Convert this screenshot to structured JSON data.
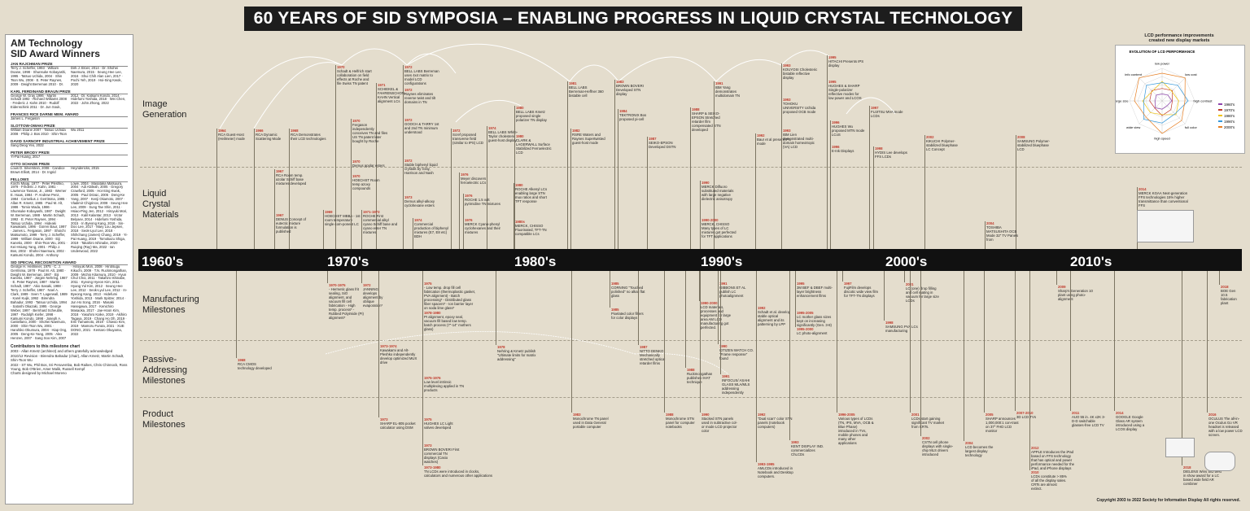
{
  "title": "60 YEARS OF SID SYMPOSIA – ENABLING PROGRESS IN LIQUID CRYSTAL TECHNOLOGY",
  "panel": {
    "title_line1": "AM Technology",
    "title_line2": "SID Award Winners",
    "prizes": [
      {
        "name": "JAN RAJCHMAN PRIZE",
        "winners": "Terry J. Scheffer, 1993 · William Doane, 1998 · Shunsuke Kobayashi, 1995 · Tatsuo Uchida, 2004 · Shin Tson Wu, 2008 · E. Peter Raynes, 2009 · Dwight Berreman 2010 · Dr. Dirk J. Broer, 2014 · Dr. Shohei Naemura, 2015 · Seung Hee Lee, 2016 · Shui Chih Alan Lien, 2017 · Pochi Yeh, 2019 · Hoi-Sing Kwok, 2020"
      },
      {
        "name": "KARL FERDINAND BRAUN PRIZE",
        "winners": "George W. Gray 1986 · Martin Schadt 1992 · Richard Williams 2008 · Frederic J. Kahn 2010 · Rudolf Eidenschink 2011 · Dr. Jun Souk, 2012 · Dr. Katsumi Kondo, 2014 · Hidefumi Yoshida, 2018 · Wei Chen, 2022 · John Zhong, 2022"
      },
      {
        "name": "FRANCES RICE DARNE MEM. AWARD",
        "winners": "James L. Fergason"
      },
      {
        "name": "SLOTTOW-OWAKI PRIZE",
        "winners": "William Doane 2007 · Tatsuo Uchida 2008 · Philip J. Bos 2010 · Shin-Tson Wu 2011"
      },
      {
        "name": "DAVID SARNOFF INDUSTRIAL ACHIEVEMENT PRIZE",
        "winners": "Sang Deog Yeo, 2022"
      },
      {
        "name": "PETER BRODY PRIZE",
        "winners": "Yi-Pai Huang, 2017"
      },
      {
        "name": "OTTO SCHADE PRIZE",
        "winners": "Louis D. Silverstein, 2008 · Candice Brown Elliott, 2014 · Dr. Ingrid Heyndericks, 2015"
      },
      {
        "name": "FELLOWS",
        "winners": "Koichi Miyaji, 1977 · Peter Pleshko, 1979 · Frederic J. Kahn, 1981 · Lawrence Tannas, Jr., 1983 · Werner E. Haas, 1984 · P. Andrew Penz, 1984 · Cornelius J. Gerritsma, 1985 · Allan R. Kmetz, 1985 · Paul M. Alt, 1986 · Tomio Wada, 1986 · Shunsuke Kobayashi, 1987 · Dwight W. Berreman, 1988 · Martin Schadt, 1992 · E. Peter Raynes, 1994 · Tatsuo Uchida, 1994 · Hideaki Kawakami, 1996 · Goiren Baur, 1997 · James L. Fergason, 1997 · Shoichi Matsumoto, 1999 · Terry J. Scheffer, 1999 · William Doane, 2000 · Eiji Kaneko, 2000 · Shin-Tson Wu, 2001 · Kei-Hsiung Yang, 2001 · Philip J. Bos, 2002 · Shohei Naemura, 2002 · Katsumi Kondo, 2004 · Anthony Lowe, 2004 · Masataka Matsuura, 2004 · Adi Abileah, 2005 · Gregory Crawford, 2005 · Hoi-Sing Kwok, 2005 · Paul Drzaic, 2005 · Deng-Ke Yang, 2007 · Kenji Okamoto, 2007 · Vladimir Chigrinov, 2008 · Seung Hee Lee, 2009 · Sung Tae Shin, 2011 · Hsiao-Ping Jen, 2012 · Hiroyuki Mori, 2013 · Kalil Kalantar, 2013 · Victor Belyaev, 2014 · Hidefumi Yoshida, 2015 · In Byeong Kang, 2016 · Sin-Doo Lee, 2017 · Mary Lou Jepsen, 2018 · Seok-Lyul Lee, 2018 · Shihchang (James) Chang, 2019 · Yi-Pai Huang, 2019 · Tomokazu Shiga, 2019 · Takahiro Ishinabe, 2020 · Ruiqing (Ray) Ma, 2022 · Ian Underwood, 2022"
      },
      {
        "name": "SID SPECIAL RECOGNITION AWARD",
        "winners": "George H. Heilmeier, 1975 · C. J. Gerritsma, 1978 · Paul M. Alt, 1980 · Dwight W. Berreman, 1987 · Eiji Kaneko, 1987 · Jürgen Nehring, 1987 · E. Peter Raynes, 1987 · Martin Schadt, 1987 · Akio Sasaki, 1988 · Terry J. Scheffer, 1987 · Noel A. Clark, 1989 · Sven T. Lagerwall, 1989 · Karel Kuijk, 1992 · Birendra Bahadur, 1993 · Tatsuo Uchida, 1994 · Satoshi Okazaki, 1995 · George Weber, 1997 · Bernhard Scheuble, 1997 · Rudolph Kiefer, 1998 · Katsumi Kondo, 1998 · Joseph A. Castellano, 2000 · Shohei Naemura, 2000 · Shin-Tson Wu, 2001 · Haruhiko Okumura, 2004 · Hiap Ong, 2005 · Deng-Ke Yang, 2005 · Alex Henzen, 2007 · Sang Soo Kim, 2007 · Hiroyuki Mori, 2008 · Hirotsugu Kikuchi, 2009 · T.N. Ruckmongathan, 2009 · Michio Kitamura, 2010 · Hyun Chul Choi, 2011 · Takahiro Ishinabe, 2011 · Kyeong Hyeon Kim, 2011 · Hyang Yul Kim, 2012 · Seung Hee Lee, 2012 · Seok-Lyul Lee, 2012 · In-Byeong Kang, 2013 · Hidefumi Yoshida, 2013 · Mark Spitzer, 2014 · Jun Ho Song, 2016 · Masaki Hasegawa, 2017 · Kenichiro Masaoka, 2017 · Jae-Hoon Kim, 2018 · Yasuhiro Koike, 2019 · Akihiro Tagaya, 2019 · Chang Ho Oh, 2019 · Emi Yamamoto, 2019 · Chiwoo Kim, 2019 · Mamoru Furuta, 2021 · XUE DONG, 2021 · Kentaro Okuyama, 2022"
      }
    ],
    "contrib_title": "Contributors to this milestone chart",
    "contrib_lines": [
      "2003 - Allan Kmetz (architect) and others gratefully acknowledged",
      "2010/12 Revision - Birendra Bahadur (chair), Allan Kmetz, Martin Schadt, Shin-Tson Wu",
      "2022 - ST Wu, Phil Bos, Sri Peruvemba, Bob Raikes, Chris Chinnock, Ross Young, Bob O'Brien, Amer Malik, Russell Kempf",
      "Charts designed by Michael Moreno"
    ]
  },
  "rows": [
    {
      "id": "image",
      "label1": "Image",
      "label2": "Generation",
      "label3": ""
    },
    {
      "id": "lc",
      "label1": "Liquid",
      "label2": "Crystal",
      "label3": "Materials"
    },
    {
      "id": "mfg",
      "label1": "Manufacturing",
      "label2": "Milestones",
      "label3": ""
    },
    {
      "id": "pa",
      "label1": "Passive-",
      "label2": "Addressing",
      "label3": "Milestones"
    },
    {
      "id": "prod",
      "label1": "Product",
      "label2": "Milestones",
      "label3": ""
    }
  ],
  "decades": [
    "1960's",
    "1970's",
    "1980's",
    "1990's",
    "2000's",
    "2010's"
  ],
  "radar": {
    "heading1": "LCD performance improvements",
    "heading2": "created new display markets",
    "title": "EVOLUTION OF LCD PERFORMANCE",
    "axes": [
      "low power",
      "low cost",
      "high contrast",
      "full color",
      "high speed",
      "wide view",
      "large size",
      "info content"
    ],
    "legend": [
      "1960's",
      "1970's",
      "1980's",
      "1990's",
      "2000's"
    ],
    "colors": [
      "#8e44ad",
      "#c0392b",
      "#f1c40f",
      "#3498db",
      "#e67e22"
    ]
  },
  "events_top": [
    {
      "yr": "1964",
      "text": "RCA Guest-Host (Heilmeier) mode"
    },
    {
      "yr": "1966",
      "text": "RCA Dynamic Scattering Mode"
    },
    {
      "yr": "1968",
      "text": "RCA Demonstrates their LCD technologies"
    },
    {
      "yr": "1970",
      "text": "Schadt & Helfrich start collaboration on field effects at Roche and file Swiss TN patent"
    },
    {
      "yr": "1971",
      "text": "SCHIEKEL & FAHRENSCHON, KAHN Vertical alignment LCs"
    },
    {
      "yr": "1972",
      "text": "BELL LABS Berreman uses 4x4 matrix to model LCD configurations"
    },
    {
      "yr": "1972",
      "text": "Raynes eliminates reverse twist and tilt domains in TN"
    },
    {
      "yr": "1972",
      "text": "GOOCH & TARRY 1st and 2nd TN minimum understood"
    },
    {
      "yr": "1972",
      "text": "Scref proposed transverse field (similar to IPS) LCD"
    },
    {
      "yr": "1974",
      "text": "BELL LABS White-Taylor cholesteric guest-host display"
    },
    {
      "yr": "1980",
      "text": "BELL LABS Kmetz proposed single polarizer TN display"
    },
    {
      "yr": "1980",
      "text": "CLARK & LAGERWALL Surface Stabilized Ferroelectric LCD"
    },
    {
      "yr": "1981",
      "text": "BELL LABS Berreman-Heffner 360 bistable cell"
    },
    {
      "yr": "1982",
      "text": "RSRE Waters and Raynes Supertwisted guest-host mode"
    },
    {
      "yr": "1983",
      "text": "BROWN BOVERI Developed STN display"
    },
    {
      "yr": "1984",
      "text": "TEKTRONIX Bos proposed pi-cell"
    },
    {
      "yr": "1987",
      "text": "SEIKO-EPSON Developed DSTN"
    },
    {
      "yr": "1988",
      "text": "SHARP & SEIKO-EPSON Stretched retarder film compensated STN developed"
    },
    {
      "yr": "1991",
      "text": "IBM Yang demonstrates multidomain TN"
    },
    {
      "yr": "1992",
      "text": "Baur et al present IPS mode"
    },
    {
      "yr": "1993",
      "text": "KOUYOSI Cholesteric bistable reflective display"
    },
    {
      "yr": "1993",
      "text": "TOHOKU UNIVERSITY Uchida proposed OCB mode"
    },
    {
      "yr": "1993",
      "text": "IBM Lien demonstrated multi-domain homeotropic (VA) LCD"
    },
    {
      "yr": "1995",
      "text": "HITACHI Presents IPS display"
    },
    {
      "yr": "1995",
      "text": "HUGHES & SHARP Single-polarizer reflective modes for low power and LCOS"
    },
    {
      "yr": "1996",
      "text": "HUGHES Wu proposed MTN mode LCoS"
    },
    {
      "yr": "1996",
      "text": "E-Ink Displays"
    },
    {
      "yr": "1997",
      "text": "FUJITSU MVA mode LCDs"
    },
    {
      "yr": "1998",
      "text": "HYDIS Lee develops FFS LCDs"
    },
    {
      "yr": "2002",
      "text": "KIKUCHI Polymer-stabilized bluephase LC Concept"
    },
    {
      "yr": "2008",
      "text": "SAMSUNG Polymer-stabilized bluephase LCD"
    }
  ],
  "events_lc": [
    {
      "yr": "1967",
      "text": "RCA Room temp. azolar Schiff base mixtures developed"
    },
    {
      "yr": "1967",
      "text": "DENUS Concept of eutectic mixture formulation is published"
    },
    {
      "yr": "1969",
      "text": "HOECHST MBBA - 1st room temperature single com-ponent LC"
    },
    {
      "yr": "1970",
      "text": "Fergason independently conceives TN and files US TN patent later bought by Roche"
    },
    {
      "yr": "1970",
      "text": "Demus apolar esters"
    },
    {
      "yr": "1970",
      "text": "HOECHST Room temp azoxy compounds"
    },
    {
      "yr": "1971-1973",
      "text": "ROCHE First commercial alkyl cyano Schiff base and cyano ester TN mixtures"
    },
    {
      "yr": "1972",
      "text": "Stable biphenyl liquid crystals by Gray, Harrison and Nash"
    },
    {
      "yr": "1973",
      "text": "Demus alkyl-alkoxy cyclohexane esters"
    },
    {
      "yr": "1974",
      "text": "Commercial production of biphenyl mixtures (E7, E8 etc) BDH"
    },
    {
      "yr": "1976",
      "text": "Meyer discovers ferroelectric LCs"
    },
    {
      "yr": "1976",
      "text": "ROCHE 1.5 volt pyrimidine TN mixtures"
    },
    {
      "yr": "1976",
      "text": "MERCK Cyano-phenyl cyclohexanes and their mixtures"
    },
    {
      "yr": "1980",
      "text": "ROCHE Alkenyl LCs enabling large STN mux ratios and short TFT response"
    },
    {
      "yr": "1980s",
      "text": "MERCK, CHISSO Fluorinated, TFT-TN compatible LCs"
    },
    {
      "yr": "1990",
      "text": "MERCK Difluoro substituted materials with large negative dielectric anisotropy"
    },
    {
      "yr": "1990-2000",
      "text": "MERCK, CHISSO Many types of LC mixtures got perfected for TFT applications"
    },
    {
      "yr": "2004",
      "text": "TOSHIBA MATSUSHITA OCB Mode 32\" TV Panels from"
    },
    {
      "yr": "2014",
      "text": "MERCK KGAA Next-generation FFS technologies 15% higher transmittance than conventional FFS"
    }
  ],
  "events_mfg": [
    {
      "yr": "1970-1975",
      "text": "- Hermetic glass frit sealing, SiO alignment, and vacuum fill cell fabrication - High temp. process* - Rubbed Polyimide (PI) alignment*"
    },
    {
      "yr": "1972",
      "text": "JANNING develops alignment by oblique evaporation*"
    },
    {
      "yr": "1975",
      "text": "- Low temp. drop fill cell fabrication (thermoplastic gasket, PVA alignment) - Batch processing* - Distributed glass fiber spacers* - Ion barrier layer on soda lime glass*"
    },
    {
      "yr": "1978-1980",
      "text": "PI alignment, epoxy seal, vacuum fill based low temp. batch process (7\"-14\" mothers glass)"
    },
    {
      "yr": "1985",
      "text": "CORNING \"Touched polished\" no alkali flat glass"
    },
    {
      "yr": "1985",
      "text": "Pixelated color filters for color displays"
    },
    {
      "yr": "1991",
      "text": "GIBBONS ET AL publish LC photoalignment"
    },
    {
      "yr": "1990-2000",
      "text": "LCD materials, processes and equipment for large area AM LCD manufacturing got perfected."
    },
    {
      "yr": "1992",
      "text": "Schadt et al. develop stable optical alignment and its patterning by LPP"
    },
    {
      "yr": "1995",
      "text": "3M BEF & DBEF multi-layer brightness enhancement films"
    },
    {
      "yr": "1995-2005",
      "text": "LC mother glass sizes kept on increasing significantly (Gen. 3-8)"
    },
    {
      "yr": "1995-2000",
      "text": "LC photo-alignment"
    },
    {
      "yr": "1997",
      "text": "FujiFilm develops discotic wide view film for TFT-TN displays"
    },
    {
      "yr": "1998",
      "text": "SAMSUNG PVA LCs manufacturing"
    },
    {
      "yr": "2001",
      "text": "LC (one) drop filling and cell mating in vacuum for large size LCDs"
    },
    {
      "yr": "2009",
      "text": "Sharp's Generation 10 plant using photo-alignment"
    },
    {
      "yr": "2018",
      "text": "BOE Gen 10.5 fabrication plant"
    }
  ],
  "events_pa": [
    {
      "yr": "1968",
      "text": "RCA CMOS technology developed"
    },
    {
      "yr": "1973-1974",
      "text": "Kawakami and Alt-Pleshko independently develop optimized MUX drive"
    },
    {
      "yr": "1978",
      "text": "Nehring & Kmetz publish \"Ultimate limits for matrix addressing\""
    },
    {
      "yr": "1987",
      "text": "NITTO DENKO Mechanically stretched optical retarder films"
    },
    {
      "yr": "1988",
      "text": "Ruckmongathan publishes IHAT technique"
    },
    {
      "yr": "1990",
      "text": "CITIZEN WATCH CO. \"Frame response\" found"
    },
    {
      "yr": "1991",
      "text": "INFOCUS/ ASAHI GLASS MLA/MLS addressing independently"
    }
  ],
  "events_prod": [
    {
      "yr": "1973",
      "text": "SHARP EL-805 pocket calculator using DSM"
    },
    {
      "yr": "1975",
      "text": "HUGHES LC Light valves developed"
    },
    {
      "yr": "1975-1976",
      "text": "Low level intrinsic multiplexing applied in TN products"
    },
    {
      "yr": "1973",
      "text": "BROWN BOVERI First commercial TN displays (Casio watches)"
    },
    {
      "yr": "1973-1980",
      "text": "TN LCDs were introduced in clocks, calculators and numerous other applications"
    },
    {
      "yr": "1983",
      "text": "Monochrome TN panel used in Data General portable computer"
    },
    {
      "yr": "1988",
      "text": "Monochrome STN panel for computer notebooks"
    },
    {
      "yr": "1990",
      "text": "Stacked STN panels used in subtractive col-or mode LCD projector color"
    },
    {
      "yr": "1992",
      "text": "\"Dual scan\" color STN panels (notebook computers)"
    },
    {
      "yr": "1993",
      "text": "KENT DISPLAY IND. commercializes ChLCDs"
    },
    {
      "yr": "1993-1995",
      "text": "AMLCDs introduced in Notebook and Desktop computers."
    },
    {
      "yr": "1996-2005",
      "text": "Various types of LCDs (TN, IPS, MVA, OCB & Blue Phase) introduced in TVs, mobile phones and many other applications"
    },
    {
      "yr": "2001",
      "text": "LCDs start gaining significant TV market from CRTs."
    },
    {
      "yr": "2002",
      "text": "CSTN cell phone displays with single-chip MLS drivers introduced"
    },
    {
      "yr": "2004",
      "text": "LCD becomes the largest display technology"
    },
    {
      "yr": "2005",
      "text": "SHARP announces 1,000,000:1 con-trast on 37\" FHD LCD monitor"
    },
    {
      "yr": "2007-2010",
      "text": "3D LCD TVs"
    },
    {
      "yr": "2010",
      "text": "LCDs constitute > 85% of all the display sales. CRTs are almost extinct."
    },
    {
      "yr": "2012",
      "text": "APPLE Introduces the iPad based on FFS technology that has optical and power performance needed for the iPad, and iPhone displays"
    },
    {
      "yr": "2011",
      "text": "AUO 55 in. 4K x2K 3-D-D switchable glasses-free LCD TV"
    },
    {
      "yr": "2014",
      "text": "GOOGLE Google Glass AR system introduced using a LCOS display"
    },
    {
      "yr": "2018",
      "text": "DIELENS Wins SID best in show award for a LC based wide field AR combiner"
    },
    {
      "yr": "2016",
      "text": "OCULUS The all-in-one Oculus Go VR headset is released with a low power LCD screen."
    }
  ],
  "copyright": "Copyright 2003 to 2022 Society for Information Display All rights reserved."
}
